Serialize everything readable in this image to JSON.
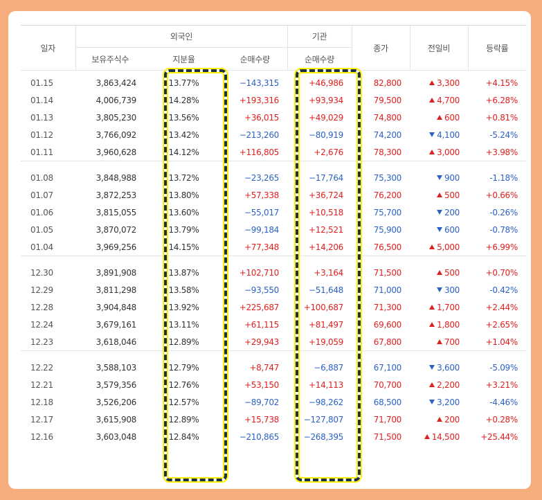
{
  "colors": {
    "up": "#e0201f",
    "down": "#2c62c6",
    "highlight": "#fff200",
    "frame": "#f6ad7d"
  },
  "header": {
    "date": "일자",
    "foreign": "외국인",
    "institution": "기관",
    "close": "종가",
    "change": "전일비",
    "rate": "등락률",
    "holdings": "보유주식수",
    "ratio": "지분율",
    "foreign_net": "순매수량",
    "inst_net": "순매수량"
  },
  "groups": [
    {
      "rows": [
        {
          "date": "01.15",
          "holdings": "3,863,424",
          "ratio": "13.77%",
          "fnet": "−143,315",
          "fnet_dir": "down",
          "inet": "+46,986",
          "inet_dir": "up",
          "close": "82,800",
          "close_dir": "up",
          "change": "3,300",
          "change_dir": "up",
          "rate": "+4.15%",
          "rate_dir": "up"
        },
        {
          "date": "01.14",
          "holdings": "4,006,739",
          "ratio": "14.28%",
          "fnet": "+193,316",
          "fnet_dir": "up",
          "inet": "+93,934",
          "inet_dir": "up",
          "close": "79,500",
          "close_dir": "up",
          "change": "4,700",
          "change_dir": "up",
          "rate": "+6.28%",
          "rate_dir": "up"
        },
        {
          "date": "01.13",
          "holdings": "3,805,230",
          "ratio": "13.56%",
          "fnet": "+36,015",
          "fnet_dir": "up",
          "inet": "+49,029",
          "inet_dir": "up",
          "close": "74,800",
          "close_dir": "up",
          "change": "600",
          "change_dir": "up",
          "rate": "+0.81%",
          "rate_dir": "up"
        },
        {
          "date": "01.12",
          "holdings": "3,766,092",
          "ratio": "13.42%",
          "fnet": "−213,260",
          "fnet_dir": "down",
          "inet": "−80,919",
          "inet_dir": "down",
          "close": "74,200",
          "close_dir": "down",
          "change": "4,100",
          "change_dir": "down",
          "rate": "-5.24%",
          "rate_dir": "down"
        },
        {
          "date": "01.11",
          "holdings": "3,960,628",
          "ratio": "14.12%",
          "fnet": "+116,805",
          "fnet_dir": "up",
          "inet": "+2,676",
          "inet_dir": "up",
          "close": "78,300",
          "close_dir": "up",
          "change": "3,000",
          "change_dir": "up",
          "rate": "+3.98%",
          "rate_dir": "up"
        }
      ]
    },
    {
      "rows": [
        {
          "date": "01.08",
          "holdings": "3,848,988",
          "ratio": "13.72%",
          "fnet": "−23,265",
          "fnet_dir": "down",
          "inet": "−17,764",
          "inet_dir": "down",
          "close": "75,300",
          "close_dir": "down",
          "change": "900",
          "change_dir": "down",
          "rate": "-1.18%",
          "rate_dir": "down"
        },
        {
          "date": "01.07",
          "holdings": "3,872,253",
          "ratio": "13.80%",
          "fnet": "+57,338",
          "fnet_dir": "up",
          "inet": "+36,724",
          "inet_dir": "up",
          "close": "76,200",
          "close_dir": "up",
          "change": "500",
          "change_dir": "up",
          "rate": "+0.66%",
          "rate_dir": "up"
        },
        {
          "date": "01.06",
          "holdings": "3,815,055",
          "ratio": "13.60%",
          "fnet": "−55,017",
          "fnet_dir": "down",
          "inet": "+10,518",
          "inet_dir": "up",
          "close": "75,700",
          "close_dir": "down",
          "change": "200",
          "change_dir": "down",
          "rate": "-0.26%",
          "rate_dir": "down"
        },
        {
          "date": "01.05",
          "holdings": "3,870,072",
          "ratio": "13.79%",
          "fnet": "−99,184",
          "fnet_dir": "down",
          "inet": "+12,521",
          "inet_dir": "up",
          "close": "75,900",
          "close_dir": "down",
          "change": "600",
          "change_dir": "down",
          "rate": "-0.78%",
          "rate_dir": "down"
        },
        {
          "date": "01.04",
          "holdings": "3,969,256",
          "ratio": "14.15%",
          "fnet": "+77,348",
          "fnet_dir": "up",
          "inet": "+14,206",
          "inet_dir": "up",
          "close": "76,500",
          "close_dir": "up",
          "change": "5,000",
          "change_dir": "up",
          "rate": "+6.99%",
          "rate_dir": "up"
        }
      ]
    },
    {
      "rows": [
        {
          "date": "12.30",
          "holdings": "3,891,908",
          "ratio": "13.87%",
          "fnet": "+102,710",
          "fnet_dir": "up",
          "inet": "+3,164",
          "inet_dir": "up",
          "close": "71,500",
          "close_dir": "up",
          "change": "500",
          "change_dir": "up",
          "rate": "+0.70%",
          "rate_dir": "up"
        },
        {
          "date": "12.29",
          "holdings": "3,811,298",
          "ratio": "13.58%",
          "fnet": "−93,550",
          "fnet_dir": "down",
          "inet": "−51,648",
          "inet_dir": "down",
          "close": "71,000",
          "close_dir": "down",
          "change": "300",
          "change_dir": "down",
          "rate": "-0.42%",
          "rate_dir": "down"
        },
        {
          "date": "12.28",
          "holdings": "3,904,848",
          "ratio": "13.92%",
          "fnet": "+225,687",
          "fnet_dir": "up",
          "inet": "+100,687",
          "inet_dir": "up",
          "close": "71,300",
          "close_dir": "up",
          "change": "1,700",
          "change_dir": "up",
          "rate": "+2.44%",
          "rate_dir": "up"
        },
        {
          "date": "12.24",
          "holdings": "3,679,161",
          "ratio": "13.11%",
          "fnet": "+61,115",
          "fnet_dir": "up",
          "inet": "+81,497",
          "inet_dir": "up",
          "close": "69,600",
          "close_dir": "up",
          "change": "1,800",
          "change_dir": "up",
          "rate": "+2.65%",
          "rate_dir": "up"
        },
        {
          "date": "12.23",
          "holdings": "3,618,046",
          "ratio": "12.89%",
          "fnet": "+29,943",
          "fnet_dir": "up",
          "inet": "+19,059",
          "inet_dir": "up",
          "close": "67,800",
          "close_dir": "up",
          "change": "700",
          "change_dir": "up",
          "rate": "+1.04%",
          "rate_dir": "up"
        }
      ]
    },
    {
      "rows": [
        {
          "date": "12.22",
          "holdings": "3,588,103",
          "ratio": "12.79%",
          "fnet": "+8,747",
          "fnet_dir": "up",
          "inet": "−6,887",
          "inet_dir": "down",
          "close": "67,100",
          "close_dir": "down",
          "change": "3,600",
          "change_dir": "down",
          "rate": "-5.09%",
          "rate_dir": "down"
        },
        {
          "date": "12.21",
          "holdings": "3,579,356",
          "ratio": "12.76%",
          "fnet": "+53,150",
          "fnet_dir": "up",
          "inet": "+14,113",
          "inet_dir": "up",
          "close": "70,700",
          "close_dir": "up",
          "change": "2,200",
          "change_dir": "up",
          "rate": "+3.21%",
          "rate_dir": "up"
        },
        {
          "date": "12.18",
          "holdings": "3,526,206",
          "ratio": "12.57%",
          "fnet": "−89,702",
          "fnet_dir": "down",
          "inet": "−98,262",
          "inet_dir": "down",
          "close": "68,500",
          "close_dir": "down",
          "change": "3,200",
          "change_dir": "down",
          "rate": "-4.46%",
          "rate_dir": "down"
        },
        {
          "date": "12.17",
          "holdings": "3,615,908",
          "ratio": "12.89%",
          "fnet": "+15,738",
          "fnet_dir": "up",
          "inet": "−127,807",
          "inet_dir": "down",
          "close": "71,700",
          "close_dir": "up",
          "change": "200",
          "change_dir": "up",
          "rate": "+0.28%",
          "rate_dir": "up"
        },
        {
          "date": "12.16",
          "holdings": "3,603,048",
          "ratio": "12.84%",
          "fnet": "−210,865",
          "fnet_dir": "down",
          "inet": "−268,395",
          "inet_dir": "down",
          "close": "71,500",
          "close_dir": "up",
          "change": "14,500",
          "change_dir": "up",
          "rate": "+25.44%",
          "rate_dir": "up"
        }
      ]
    }
  ]
}
